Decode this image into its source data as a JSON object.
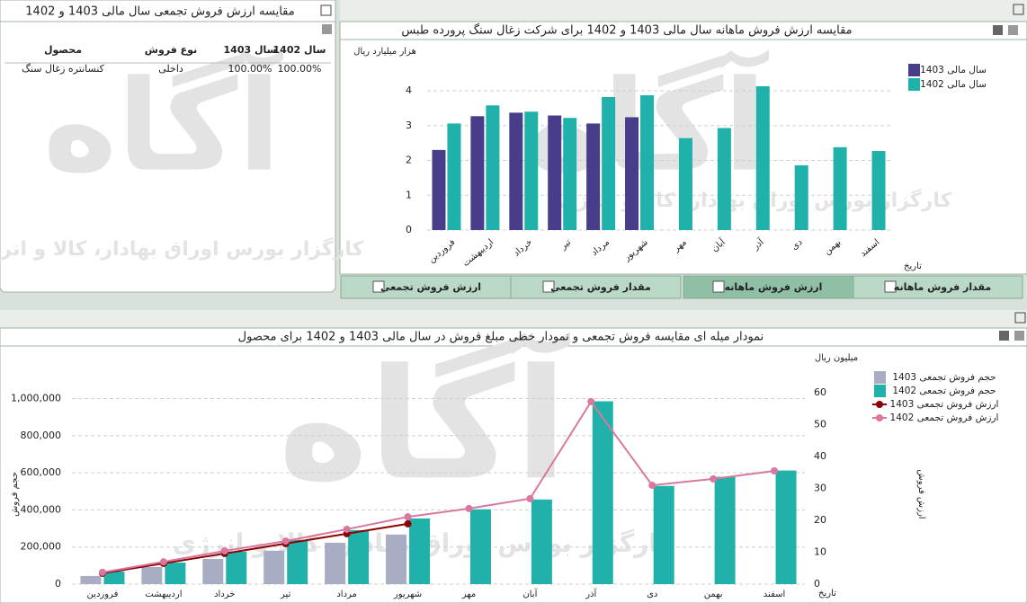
{
  "watermark": {
    "brand": "آگاه",
    "text": "کارگزار بورس اوراق بهادار، کالا و انرژی"
  },
  "table": {
    "title": "مقایسه ارزش فروش تجمعی سال مالی 1403 و 1402",
    "columns": [
      "سال 1402",
      "سال 1403",
      "نوع فروش",
      "محصول"
    ],
    "rows": [
      [
        "100.00%",
        "100.00%",
        "داخلی",
        "کنسانتره زغال سنگ"
      ]
    ]
  },
  "tabs": {
    "items": [
      "مقدار فروش ماهانه",
      "ارزش فروش ماهانه",
      "مقدار فروش تجمعی",
      "ارزش فروش تجمعی"
    ],
    "active": 1
  },
  "chart_data": [
    {
      "type": "bar",
      "title": "مقایسه ارزش فروش ماهانه سال مالی 1403 و 1402 برای شرکت زغال سنگ پرورده طبس",
      "y_label": "هزار میلیارد ریال",
      "x_label": "تاریخ",
      "categories": [
        "فروردین",
        "اردیبهشت",
        "خرداد",
        "تیر",
        "مرداد",
        "شهریور",
        "مهر",
        "آبان",
        "آذر",
        "دی",
        "بهمن",
        "اسفند"
      ],
      "series": [
        {
          "name": "سال مالی 1403",
          "color": "#483d8b",
          "values": [
            2.3,
            3.27,
            3.37,
            3.29,
            3.06,
            3.24,
            null,
            null,
            null,
            null,
            null,
            null
          ]
        },
        {
          "name": "سال مالی 1402",
          "color": "#20b2aa",
          "values": [
            3.06,
            3.58,
            3.4,
            3.22,
            3.82,
            3.87,
            2.64,
            2.93,
            4.13,
            1.86,
            2.38,
            2.27
          ]
        }
      ],
      "ylim": [
        0,
        4.8
      ],
      "yticks": [
        0,
        1,
        2,
        3,
        4
      ],
      "grid": true
    },
    {
      "type": "combo",
      "title": "نمودار میله ای مقایسه فروش تجمعی و نمودار خطی مبلغ فروش در سال مالی 1403 و 1402 برای محصول",
      "y_label": "حجم فروش",
      "y2_label": "ارزش فروش",
      "y2_unit": "میلیون ریال",
      "x_label": "تاریخ",
      "categories": [
        "فروردین",
        "اردیبهشت",
        "خرداد",
        "تیر",
        "مرداد",
        "شهریور",
        "مهر",
        "آبان",
        "آذر",
        "دی",
        "بهمن",
        "اسفند"
      ],
      "series": [
        {
          "name": "حجم فروش تجمعی 1403",
          "color": "#a9adc3",
          "values": [
            44000,
            92000,
            136000,
            180000,
            223000,
            267000,
            null,
            null,
            null,
            null,
            null,
            null
          ]
        },
        {
          "name": "حجم فروش تجمعی 1402",
          "color": "#20b2aa",
          "values": [
            68000,
            116000,
            175000,
            238000,
            291000,
            354000,
            403000,
            456000,
            985000,
            529000,
            578000,
            612000
          ]
        },
        {
          "name": "ارزش فروش تجمعی 1403",
          "color": "#8b0000",
          "axis": "y2",
          "values": [
            3.4,
            6.5,
            9.6,
            12.7,
            15.8,
            18.9,
            null,
            null,
            null,
            null,
            null,
            null
          ]
        },
        {
          "name": "ارزش فروش تجمعی 1402",
          "color": "#d9779f",
          "axis": "y2",
          "values": [
            3.7,
            7.0,
            10.4,
            13.5,
            17.2,
            21.1,
            23.7,
            26.8,
            57.2,
            31.0,
            33.0,
            35.5
          ]
        }
      ],
      "ylim": [
        0,
        1220000
      ],
      "yticks": [
        0,
        {
          "value": 200000,
          "label": "200,000"
        },
        {
          "value": 400000,
          "label": "400,000"
        },
        {
          "value": 600000,
          "label": "600,000"
        },
        {
          "value": 800000,
          "label": "800,000"
        },
        {
          "value": 1000000,
          "label": "1,000,000"
        }
      ],
      "y2lim": [
        0,
        71
      ],
      "y2ticks": [
        0,
        10,
        20,
        30,
        40,
        50,
        60
      ],
      "grid": true
    }
  ]
}
